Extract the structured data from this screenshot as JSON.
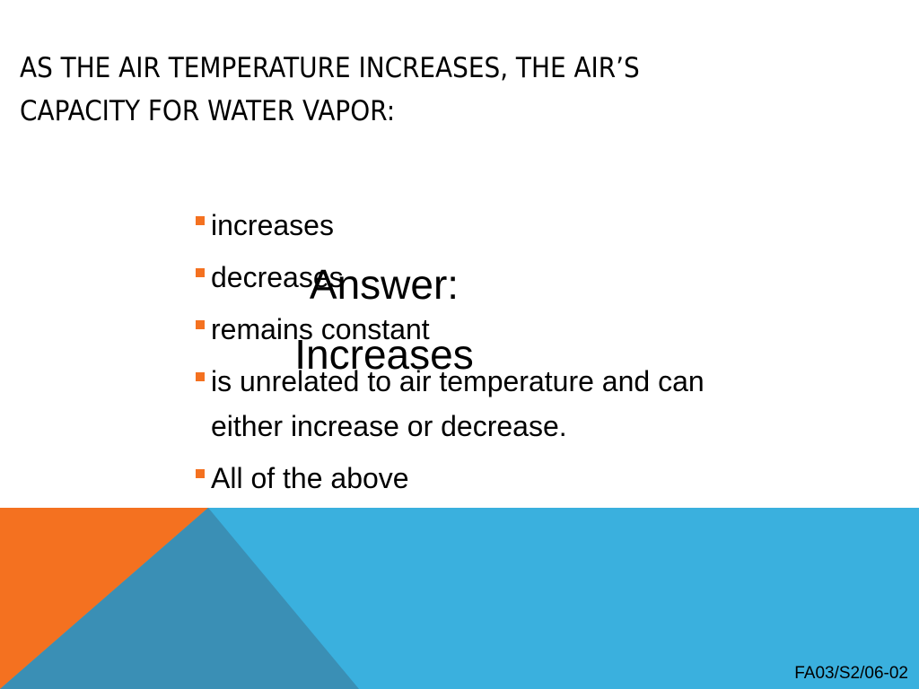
{
  "slide": {
    "title_line1": "AS THE AIR TEMPERATURE INCREASES, THE AIR’S",
    "title_line2": "CAPACITY FOR WATER VAPOR:",
    "bullets": [
      {
        "line1": "increases",
        "line2": ""
      },
      {
        "line1": "decreases",
        "line2": ""
      },
      {
        "line1": "remains constant",
        "line2": ""
      },
      {
        "line1": "is unrelated to air temperature and can",
        "line2": "either increase or decrease."
      },
      {
        "line1": "All of the above",
        "line2": ""
      }
    ],
    "answer_line1": "Answer:",
    "answer_line2": "Increases",
    "footer_code": "FA03/S2/06-02"
  },
  "colors": {
    "bullet": "#f47120",
    "band_blue": "#3ab0de",
    "band_orange": "#f47120",
    "band_teal": "#3a8fb5"
  }
}
